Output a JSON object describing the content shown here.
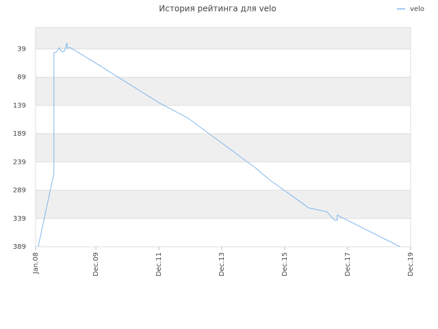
{
  "chart_data": {
    "type": "line",
    "title": "История рейтинга для velo",
    "x": [
      "2008-02",
      "2008-08",
      "2008-08",
      "2008-08",
      "2008-09",
      "2008-10",
      "2008-11",
      "2008-12",
      "2009-01",
      "2009-01",
      "2009-02",
      "2010-02",
      "2010-05",
      "2011-12",
      "2012-11",
      "2015-01",
      "2015-06",
      "2016-07",
      "2016-09",
      "2017-04",
      "2017-07",
      "2017-08",
      "2017-08",
      "2019-08"
    ],
    "series": [
      {
        "name": "velo",
        "color": "#7cb5ec",
        "values": [
          389,
          259,
          153,
          46,
          44,
          37,
          44,
          43,
          28,
          38,
          36,
          70,
          79,
          134,
          161,
          250,
          270,
          313,
          320,
          327,
          342,
          342,
          333,
          389
        ]
      }
    ],
    "xlim": [
      "2008-01",
      "2019-12"
    ],
    "xticks": [
      {
        "value": "2008-01",
        "label": "Jan.08"
      },
      {
        "value": "2009-12",
        "label": "Dec.09"
      },
      {
        "value": "2011-12",
        "label": "Dec.11"
      },
      {
        "value": "2013-12",
        "label": "Dec.13"
      },
      {
        "value": "2015-12",
        "label": "Dec.15"
      },
      {
        "value": "2017-12",
        "label": "Dec.17"
      },
      {
        "value": "2019-12",
        "label": "Dec.19"
      }
    ],
    "ylim": [
      389,
      1
    ],
    "yticks": [
      39,
      89,
      139,
      189,
      239,
      289,
      339,
      389
    ],
    "grid": true,
    "legend": "top-right"
  }
}
